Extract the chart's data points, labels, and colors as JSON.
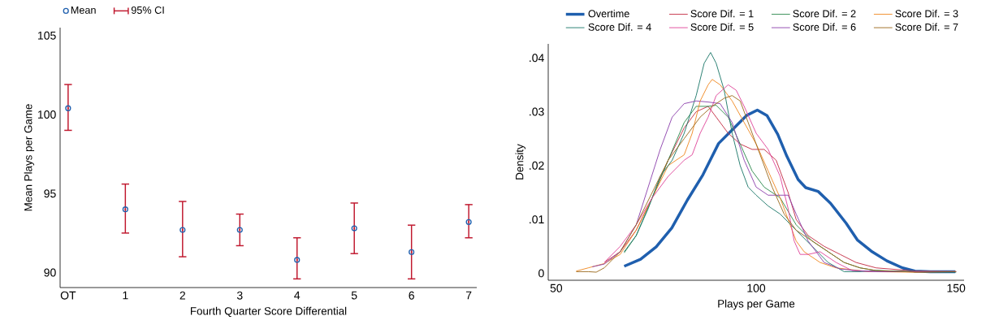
{
  "chart_data": [
    {
      "type": "scatter",
      "xlabel": "Fourth Quarter Score Differential",
      "ylabel": "Mean Plays per Game",
      "categories": [
        "OT",
        "1",
        "2",
        "3",
        "4",
        "5",
        "6",
        "7"
      ],
      "ylim": [
        89.05,
        105.5
      ],
      "yticks": [
        90,
        95,
        100,
        105
      ],
      "marker": "circle",
      "legend": "top left",
      "series": [
        {
          "name": "Mean",
          "type": "scatter",
          "color": "#1f5fae",
          "values": [
            100.4,
            94.0,
            92.7,
            92.7,
            90.8,
            92.8,
            91.3,
            93.2
          ]
        },
        {
          "name": "95% CI",
          "type": "scatter",
          "color": "#c0182e",
          "values": [
            100.4,
            94.0,
            92.7,
            92.7,
            90.8,
            92.8,
            91.3,
            93.2
          ],
          "errors": [
            [
              99.0,
              101.9
            ],
            [
              92.5,
              95.6
            ],
            [
              91.0,
              94.5
            ],
            [
              91.7,
              93.7
            ],
            [
              89.6,
              92.2
            ],
            [
              91.2,
              94.4
            ],
            [
              89.6,
              93.0
            ],
            [
              92.2,
              94.3
            ]
          ]
        }
      ]
    },
    {
      "type": "line",
      "xlabel": "Plays per Game",
      "ylabel": "Density",
      "xlim": [
        48,
        152
      ],
      "xticks": [
        50,
        100,
        150
      ],
      "ylim": [
        -0.0013,
        0.0426
      ],
      "yticks": [
        0,
        {
          "value": 0.01,
          "label": ".01"
        },
        {
          "value": 0.02,
          "label": ".02"
        },
        {
          "value": 0.03,
          "label": ".03"
        },
        {
          "value": 0.04,
          "label": ".04"
        }
      ],
      "legend": "top right",
      "marker": "none",
      "line_style": "solid",
      "series": [
        {
          "name": "Overtime",
          "color": "#1f5fae",
          "x": [
            67.0,
            71.1,
            75.0,
            78.9,
            82.8,
            86.7,
            90.6,
            94.5,
            97.6,
            100.3,
            102.7,
            105.4,
            107.7,
            110.5,
            112.4,
            115.5,
            118.6,
            122.5,
            125.3,
            128.8,
            132.7,
            136.6,
            139.7,
            143.6,
            149.8
          ],
          "values": [
            0.0013,
            0.0026,
            0.0049,
            0.0084,
            0.0136,
            0.0183,
            0.0241,
            0.027,
            0.0293,
            0.0303,
            0.0293,
            0.0258,
            0.0217,
            0.0174,
            0.0159,
            0.0152,
            0.013,
            0.0093,
            0.0062,
            0.0041,
            0.0023,
            0.001,
            0.0004,
            0.0003,
            0.0003
          ]
        },
        {
          "name": "Score Dif. = 1",
          "color": "#c42e45",
          "x": [
            62,
            66,
            70,
            74,
            78,
            82,
            85,
            88,
            90,
            93,
            96,
            99,
            102,
            105,
            108,
            110,
            113,
            117,
            121,
            125,
            130,
            140,
            150
          ],
          "values": [
            0.002,
            0.004,
            0.008,
            0.014,
            0.021,
            0.027,
            0.03,
            0.031,
            0.029,
            0.026,
            0.024,
            0.023,
            0.023,
            0.021,
            0.015,
            0.01,
            0.007,
            0.005,
            0.0035,
            0.002,
            0.001,
            0.0004,
            0.0003
          ]
        },
        {
          "name": "Score Dif. = 2",
          "color": "#2e8b4f",
          "x": [
            67,
            70,
            74,
            78,
            82,
            85,
            88,
            90,
            93,
            96,
            99,
            102,
            106,
            110,
            114,
            118,
            122,
            126,
            130,
            140,
            150
          ],
          "values": [
            0.0038,
            0.007,
            0.014,
            0.021,
            0.028,
            0.031,
            0.031,
            0.0312,
            0.029,
            0.024,
            0.019,
            0.016,
            0.014,
            0.009,
            0.006,
            0.004,
            0.002,
            0.001,
            0.0005,
            0.0003,
            0.0003
          ]
        },
        {
          "name": "Score Dif. = 3",
          "color": "#f08a24",
          "x": [
            55,
            58,
            62,
            66,
            70,
            74,
            78,
            82,
            84,
            86,
            88,
            89,
            91,
            94,
            97,
            100,
            103,
            106,
            108,
            110,
            112,
            116,
            120,
            128,
            140,
            150
          ],
          "values": [
            0.0004,
            0.001,
            0.0018,
            0.0035,
            0.008,
            0.014,
            0.02,
            0.022,
            0.026,
            0.032,
            0.035,
            0.036,
            0.035,
            0.032,
            0.028,
            0.024,
            0.019,
            0.014,
            0.01,
            0.006,
            0.004,
            0.002,
            0.001,
            0.0003,
            0.0002,
            0.0003
          ]
        },
        {
          "name": "Score Dif. = 4",
          "color": "#1f7a6c",
          "x": [
            67,
            70,
            73,
            76,
            79,
            82,
            85,
            87,
            88.6,
            90,
            92,
            94,
            96,
            98,
            100,
            103,
            106,
            110,
            114,
            118,
            122,
            126,
            130,
            135,
            145,
            150
          ],
          "values": [
            0.004,
            0.007,
            0.012,
            0.018,
            0.021,
            0.026,
            0.033,
            0.039,
            0.041,
            0.039,
            0.034,
            0.026,
            0.02,
            0.016,
            0.0145,
            0.0125,
            0.011,
            0.008,
            0.005,
            0.002,
            0.0003,
            0.0003,
            0.0005,
            0.0004,
            0.0002,
            0.0002
          ]
        },
        {
          "name": "Score Dif. = 5",
          "color": "#e0489b",
          "x": [
            62,
            66,
            70,
            74,
            78,
            82,
            84,
            86,
            88,
            90,
            93,
            95,
            97,
            100,
            103,
            106,
            108,
            109.5,
            111,
            113,
            116,
            120,
            124,
            130,
            140,
            150
          ],
          "values": [
            0.002,
            0.005,
            0.009,
            0.014,
            0.018,
            0.021,
            0.022,
            0.026,
            0.029,
            0.033,
            0.035,
            0.034,
            0.031,
            0.026,
            0.023,
            0.018,
            0.012,
            0.006,
            0.0035,
            0.0035,
            0.004,
            0.002,
            0.0005,
            0.0003,
            0.0003,
            0.0003
          ]
        },
        {
          "name": "Score Dif. = 6",
          "color": "#8e44ad",
          "x": [
            59,
            62,
            66,
            70,
            73,
            76,
            79,
            82,
            85,
            88,
            91,
            94,
            97,
            100,
            103,
            106,
            108,
            110,
            113,
            117,
            121,
            125,
            130,
            140,
            150
          ],
          "values": [
            0.0012,
            0.0017,
            0.004,
            0.009,
            0.016,
            0.023,
            0.029,
            0.0315,
            0.032,
            0.0318,
            0.0315,
            0.028,
            0.021,
            0.016,
            0.0145,
            0.0145,
            0.0145,
            0.011,
            0.006,
            0.002,
            0.0008,
            0.0005,
            0.0003,
            0.0003,
            0.0003
          ]
        },
        {
          "name": "Score Dif. = 7",
          "color": "#9c6a1e",
          "x": [
            55,
            58,
            60,
            62,
            66,
            70,
            74,
            78,
            82,
            86,
            89,
            92,
            94,
            96,
            98,
            101,
            104,
            107,
            110,
            114,
            118,
            122,
            126,
            130,
            140,
            150
          ],
          "values": [
            0.0003,
            0.0003,
            0.0002,
            0.001,
            0.004,
            0.009,
            0.015,
            0.021,
            0.025,
            0.029,
            0.031,
            0.0325,
            0.033,
            0.032,
            0.028,
            0.022,
            0.016,
            0.011,
            0.008,
            0.006,
            0.004,
            0.002,
            0.001,
            0.0005,
            0.0002,
            0.0003
          ]
        }
      ]
    }
  ]
}
